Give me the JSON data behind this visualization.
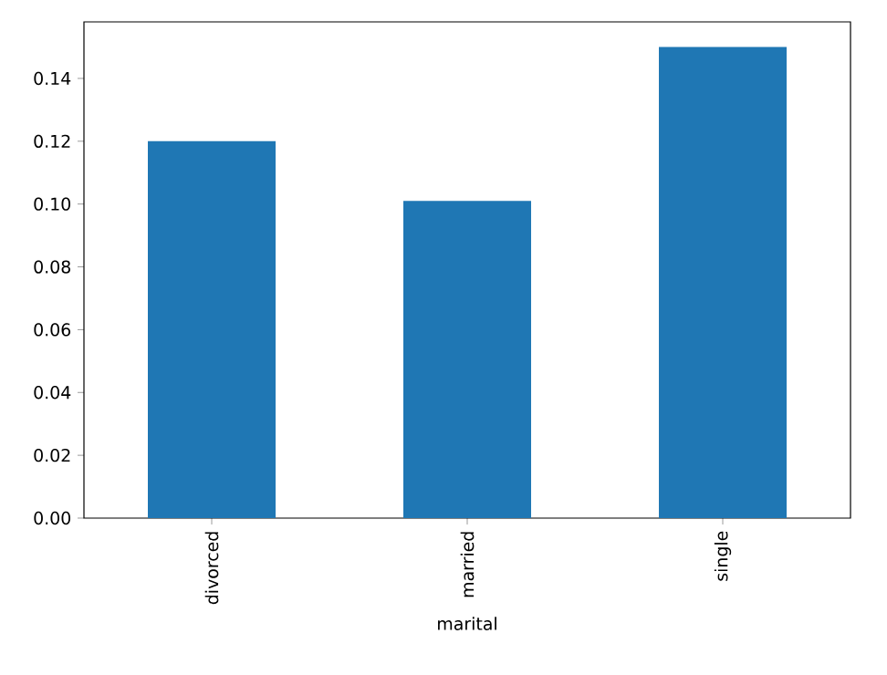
{
  "chart_data": {
    "type": "bar",
    "xlabel": "marital",
    "categories": [
      "divorced",
      "married",
      "single"
    ],
    "values": [
      0.12,
      0.101,
      0.15
    ],
    "color": "#1f77b4",
    "ylim": [
      0,
      0.158
    ],
    "yticks": [
      {
        "value": 0,
        "label": "0.00"
      },
      {
        "value": 0.02,
        "label": "0.02"
      },
      {
        "value": 0.04,
        "label": "0.04"
      },
      {
        "value": 0.06,
        "label": "0.06"
      },
      {
        "value": 0.08,
        "label": "0.08"
      },
      {
        "value": 0.1,
        "label": "0.10"
      },
      {
        "value": 0.12,
        "label": "0.12"
      },
      {
        "value": 0.14,
        "label": "0.14"
      }
    ]
  }
}
